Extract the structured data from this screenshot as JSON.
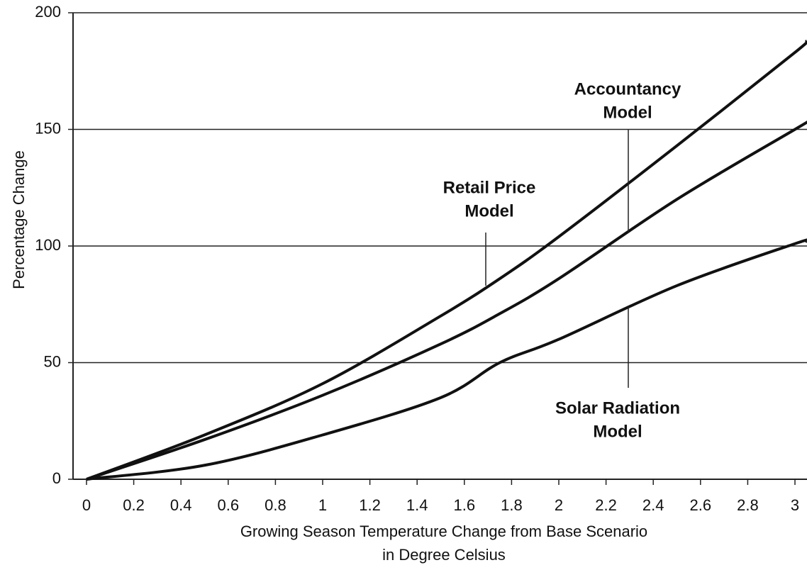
{
  "chart_data": {
    "type": "line",
    "ylabel": "Percentage Change",
    "xlabel": [
      "Growing Season Temperature Change from Base Scenario",
      "in Degree Celsius"
    ],
    "x": [
      0,
      0.5,
      1,
      1.5,
      1.75,
      2,
      2.5,
      3,
      3.05
    ],
    "series": [
      {
        "color": "#111111",
        "values": [
          0,
          19,
          41,
          70,
          86,
          104,
          143,
          183,
          188
        ]
      },
      {
        "color": "#111111",
        "values": [
          0,
          17,
          36,
          58,
          71,
          86,
          120,
          150,
          153
        ]
      },
      {
        "color": "#111111",
        "values": [
          0,
          6,
          19,
          35,
          50,
          60,
          83,
          101,
          102
        ]
      }
    ],
    "annotations": [
      [
        "Retail Price",
        "Model"
      ],
      [
        "Accountancy",
        "Model"
      ],
      [
        "Solar Radiation",
        "Model"
      ]
    ],
    "xlim": [
      -0.057,
      3.051
    ],
    "xticks": [
      0,
      0.2,
      0.4,
      0.6,
      0.8,
      1,
      1.2,
      1.4,
      1.6,
      1.8,
      2,
      2.2,
      2.4,
      2.6,
      2.8,
      3
    ],
    "ylim": [
      0,
      200
    ],
    "yticks": [
      0,
      50,
      100,
      150,
      200
    ],
    "grid": true
  }
}
